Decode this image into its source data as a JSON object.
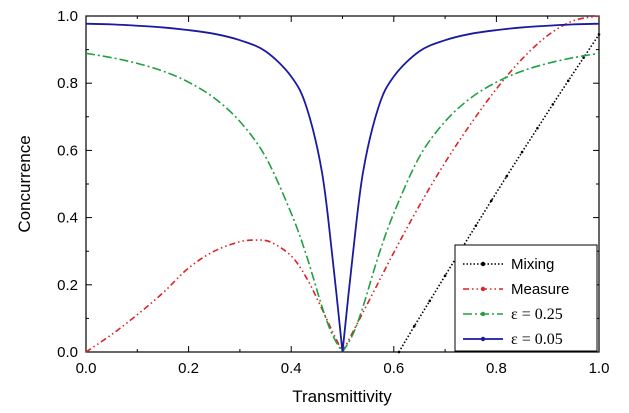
{
  "chart_data": {
    "type": "line",
    "title": "",
    "xlabel": "Transmittivity",
    "ylabel": "Concurrence",
    "xlim": [
      0.0,
      1.0
    ],
    "ylim": [
      0.0,
      1.0
    ],
    "xticks": [
      "0.0",
      "0.2",
      "0.4",
      "0.6",
      "0.8",
      "1.0"
    ],
    "yticks": [
      "0.0",
      "0.2",
      "0.4",
      "0.6",
      "0.8",
      "1.0"
    ],
    "grid": false,
    "legend_position": "bottom-right",
    "series": [
      {
        "name": "Mixing",
        "color": "#000000",
        "style": "dotted-markers",
        "x": [
          0.61,
          0.64,
          0.67,
          0.7,
          0.73,
          0.76,
          0.79,
          0.82,
          0.85,
          0.88,
          0.91,
          0.94,
          0.97,
          1.0
        ],
        "y": [
          0.0,
          0.077,
          0.152,
          0.227,
          0.302,
          0.376,
          0.45,
          0.523,
          0.595,
          0.666,
          0.737,
          0.807,
          0.876,
          0.945
        ]
      },
      {
        "name": "Measure",
        "color": "#dd2222",
        "style": "dash-dot-dot",
        "x": [
          0.0,
          0.05,
          0.1,
          0.15,
          0.2,
          0.25,
          0.3,
          0.333,
          0.36,
          0.4,
          0.43,
          0.46,
          0.48,
          0.5,
          0.52,
          0.54,
          0.57,
          0.6,
          0.65,
          0.7,
          0.75,
          0.8,
          0.85,
          0.9,
          0.95,
          1.0
        ],
        "y": [
          0.0,
          0.052,
          0.111,
          0.176,
          0.25,
          0.3,
          0.328,
          0.333,
          0.327,
          0.286,
          0.22,
          0.128,
          0.062,
          0.0,
          0.059,
          0.118,
          0.207,
          0.296,
          0.436,
          0.564,
          0.679,
          0.783,
          0.872,
          0.942,
          0.986,
          1.0
        ]
      },
      {
        "name": "ε = 0.25",
        "color": "#20a040",
        "style": "dash-dot",
        "x": [
          0.0,
          0.05,
          0.1,
          0.15,
          0.2,
          0.25,
          0.3,
          0.35,
          0.4,
          0.43,
          0.46,
          0.48,
          0.5,
          0.52,
          0.54,
          0.57,
          0.6,
          0.65,
          0.7,
          0.75,
          0.8,
          0.85,
          0.9,
          0.95,
          1.0
        ],
        "y": [
          0.889,
          0.876,
          0.859,
          0.836,
          0.803,
          0.756,
          0.686,
          0.581,
          0.413,
          0.286,
          0.135,
          0.052,
          0.0,
          0.052,
          0.135,
          0.286,
          0.413,
          0.581,
          0.686,
          0.756,
          0.803,
          0.836,
          0.859,
          0.876,
          0.889
        ]
      },
      {
        "name": "ε = 0.05",
        "color": "#1a1aa0",
        "style": "solid",
        "x": [
          0.0,
          0.05,
          0.1,
          0.15,
          0.2,
          0.25,
          0.3,
          0.35,
          0.4,
          0.43,
          0.46,
          0.48,
          0.5,
          0.52,
          0.54,
          0.57,
          0.6,
          0.65,
          0.7,
          0.75,
          0.8,
          0.85,
          0.9,
          0.95,
          1.0
        ],
        "y": [
          0.977,
          0.975,
          0.971,
          0.966,
          0.958,
          0.947,
          0.928,
          0.895,
          0.82,
          0.728,
          0.535,
          0.288,
          0.0,
          0.288,
          0.535,
          0.728,
          0.82,
          0.895,
          0.928,
          0.947,
          0.958,
          0.966,
          0.971,
          0.975,
          0.977
        ]
      }
    ]
  }
}
